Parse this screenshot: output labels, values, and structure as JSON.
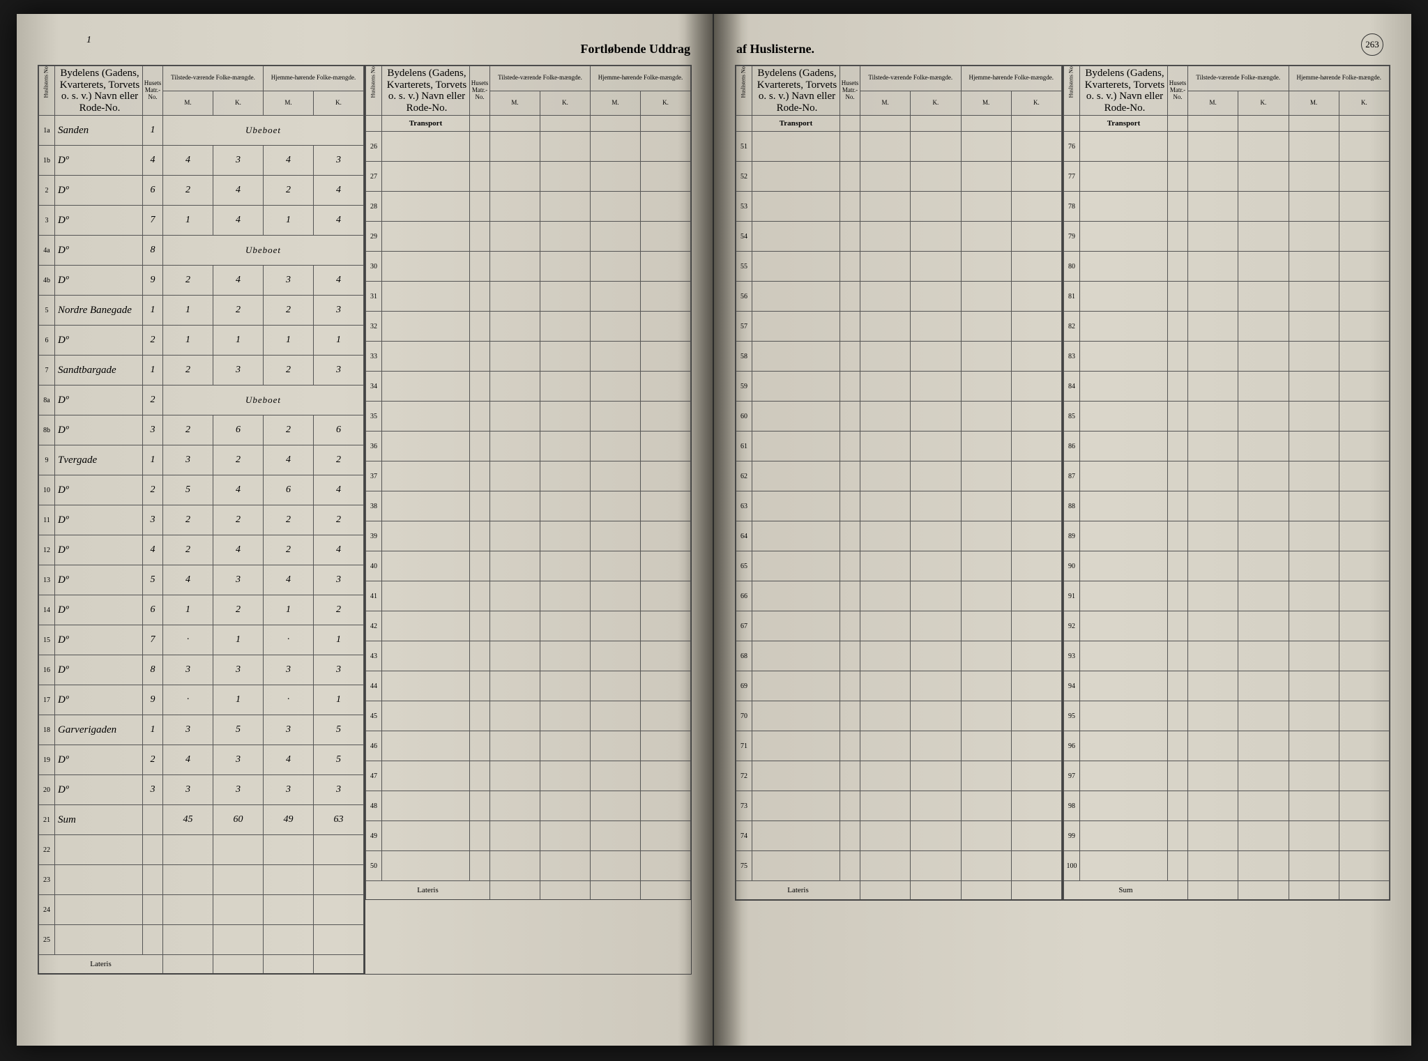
{
  "title_left": "Fortløbende Uddrag",
  "title_right": "af Huslisterne.",
  "page_number_handwritten": "1",
  "page_number_printed": "263",
  "headers": {
    "huslistens_no": "Huslistens No.",
    "bydelens": "Bydelens (Gadens, Kvarterets, Torvets o. s. v.) Navn eller Rode-No.",
    "husets_matr": "Husets Matr.-No.",
    "tilstede": "Tilstede-værende Folke-mængde.",
    "hjemme": "Hjemme-hørende Folke-mængde.",
    "m": "M.",
    "k": "K."
  },
  "transport_label": "Transport",
  "lateris_label": "Lateris",
  "sum_label": "Sum",
  "rows_block1": [
    {
      "no": "1a",
      "name": "Sanden",
      "matr": "1",
      "tm": "",
      "tk": "",
      "hm": "",
      "hk": "",
      "note": "Ubeboet"
    },
    {
      "no": "1b",
      "name": "Dº",
      "matr": "4",
      "tm": "4",
      "tk": "3",
      "hm": "4",
      "hk": "3"
    },
    {
      "no": "2",
      "name": "Dº",
      "matr": "6",
      "tm": "2",
      "tk": "4",
      "hm": "2",
      "hk": "4"
    },
    {
      "no": "3",
      "name": "Dº",
      "matr": "7",
      "tm": "1",
      "tk": "4",
      "hm": "1",
      "hk": "4"
    },
    {
      "no": "4a",
      "name": "Dº",
      "matr": "8",
      "tm": "",
      "tk": "",
      "hm": "",
      "hk": "",
      "note": "Ubeboet"
    },
    {
      "no": "4b",
      "name": "Dº",
      "matr": "9",
      "tm": "2",
      "tk": "4",
      "hm": "3",
      "hk": "4"
    },
    {
      "no": "5",
      "name": "Nordre Banegade",
      "matr": "1",
      "tm": "1",
      "tk": "2",
      "hm": "2",
      "hk": "3"
    },
    {
      "no": "6",
      "name": "Dº",
      "matr": "2",
      "tm": "1",
      "tk": "1",
      "hm": "1",
      "hk": "1"
    },
    {
      "no": "7",
      "name": "Sandtbargade",
      "matr": "1",
      "tm": "2",
      "tk": "3",
      "hm": "2",
      "hk": "3"
    },
    {
      "no": "8a",
      "name": "Dº",
      "matr": "2",
      "tm": "",
      "tk": "",
      "hm": "",
      "hk": "",
      "note": "Ubeboet"
    },
    {
      "no": "8b",
      "name": "Dº",
      "matr": "3",
      "tm": "2",
      "tk": "6",
      "hm": "2",
      "hk": "6"
    },
    {
      "no": "9",
      "name": "Tvergade",
      "matr": "1",
      "tm": "3",
      "tk": "2",
      "hm": "4",
      "hk": "2"
    },
    {
      "no": "10",
      "name": "Dº",
      "matr": "2",
      "tm": "5",
      "tk": "4",
      "hm": "6",
      "hk": "4"
    },
    {
      "no": "11",
      "name": "Dº",
      "matr": "3",
      "tm": "2",
      "tk": "2",
      "hm": "2",
      "hk": "2"
    },
    {
      "no": "12",
      "name": "Dº",
      "matr": "4",
      "tm": "2",
      "tk": "4",
      "hm": "2",
      "hk": "4"
    },
    {
      "no": "13",
      "name": "Dº",
      "matr": "5",
      "tm": "4",
      "tk": "3",
      "hm": "4",
      "hk": "3"
    },
    {
      "no": "14",
      "name": "Dº",
      "matr": "6",
      "tm": "1",
      "tk": "2",
      "hm": "1",
      "hk": "2"
    },
    {
      "no": "15",
      "name": "Dº",
      "matr": "7",
      "tm": "·",
      "tk": "1",
      "hm": "·",
      "hk": "1"
    },
    {
      "no": "16",
      "name": "Dº",
      "matr": "8",
      "tm": "3",
      "tk": "3",
      "hm": "3",
      "hk": "3"
    },
    {
      "no": "17",
      "name": "Dº",
      "matr": "9",
      "tm": "·",
      "tk": "1",
      "hm": "·",
      "hk": "1"
    },
    {
      "no": "18",
      "name": "Garverigaden",
      "matr": "1",
      "tm": "3",
      "tk": "5",
      "hm": "3",
      "hk": "5"
    },
    {
      "no": "19",
      "name": "Dº",
      "matr": "2",
      "tm": "4",
      "tk": "3",
      "hm": "4",
      "hk": "5"
    },
    {
      "no": "20",
      "name": "Dº",
      "matr": "3",
      "tm": "3",
      "tk": "3",
      "hm": "3",
      "hk": "3"
    },
    {
      "no": "21",
      "name": "Sum",
      "matr": "",
      "tm": "45",
      "tk": "60",
      "hm": "49",
      "hk": "63"
    },
    {
      "no": "22",
      "name": "",
      "matr": "",
      "tm": "",
      "tk": "",
      "hm": "",
      "hk": ""
    },
    {
      "no": "23",
      "name": "",
      "matr": "",
      "tm": "",
      "tk": "",
      "hm": "",
      "hk": ""
    },
    {
      "no": "24",
      "name": "",
      "matr": "",
      "tm": "",
      "tk": "",
      "hm": "",
      "hk": ""
    },
    {
      "no": "25",
      "name": "",
      "matr": "",
      "tm": "",
      "tk": "",
      "hm": "",
      "hk": ""
    }
  ],
  "block2_start": 26,
  "block2_end": 50,
  "block3_start": 51,
  "block3_end": 75,
  "block4_start": 76,
  "block4_end": 100,
  "colors": {
    "paper": "#dad6ca",
    "ink": "#2b2b2b",
    "border": "#555555"
  }
}
